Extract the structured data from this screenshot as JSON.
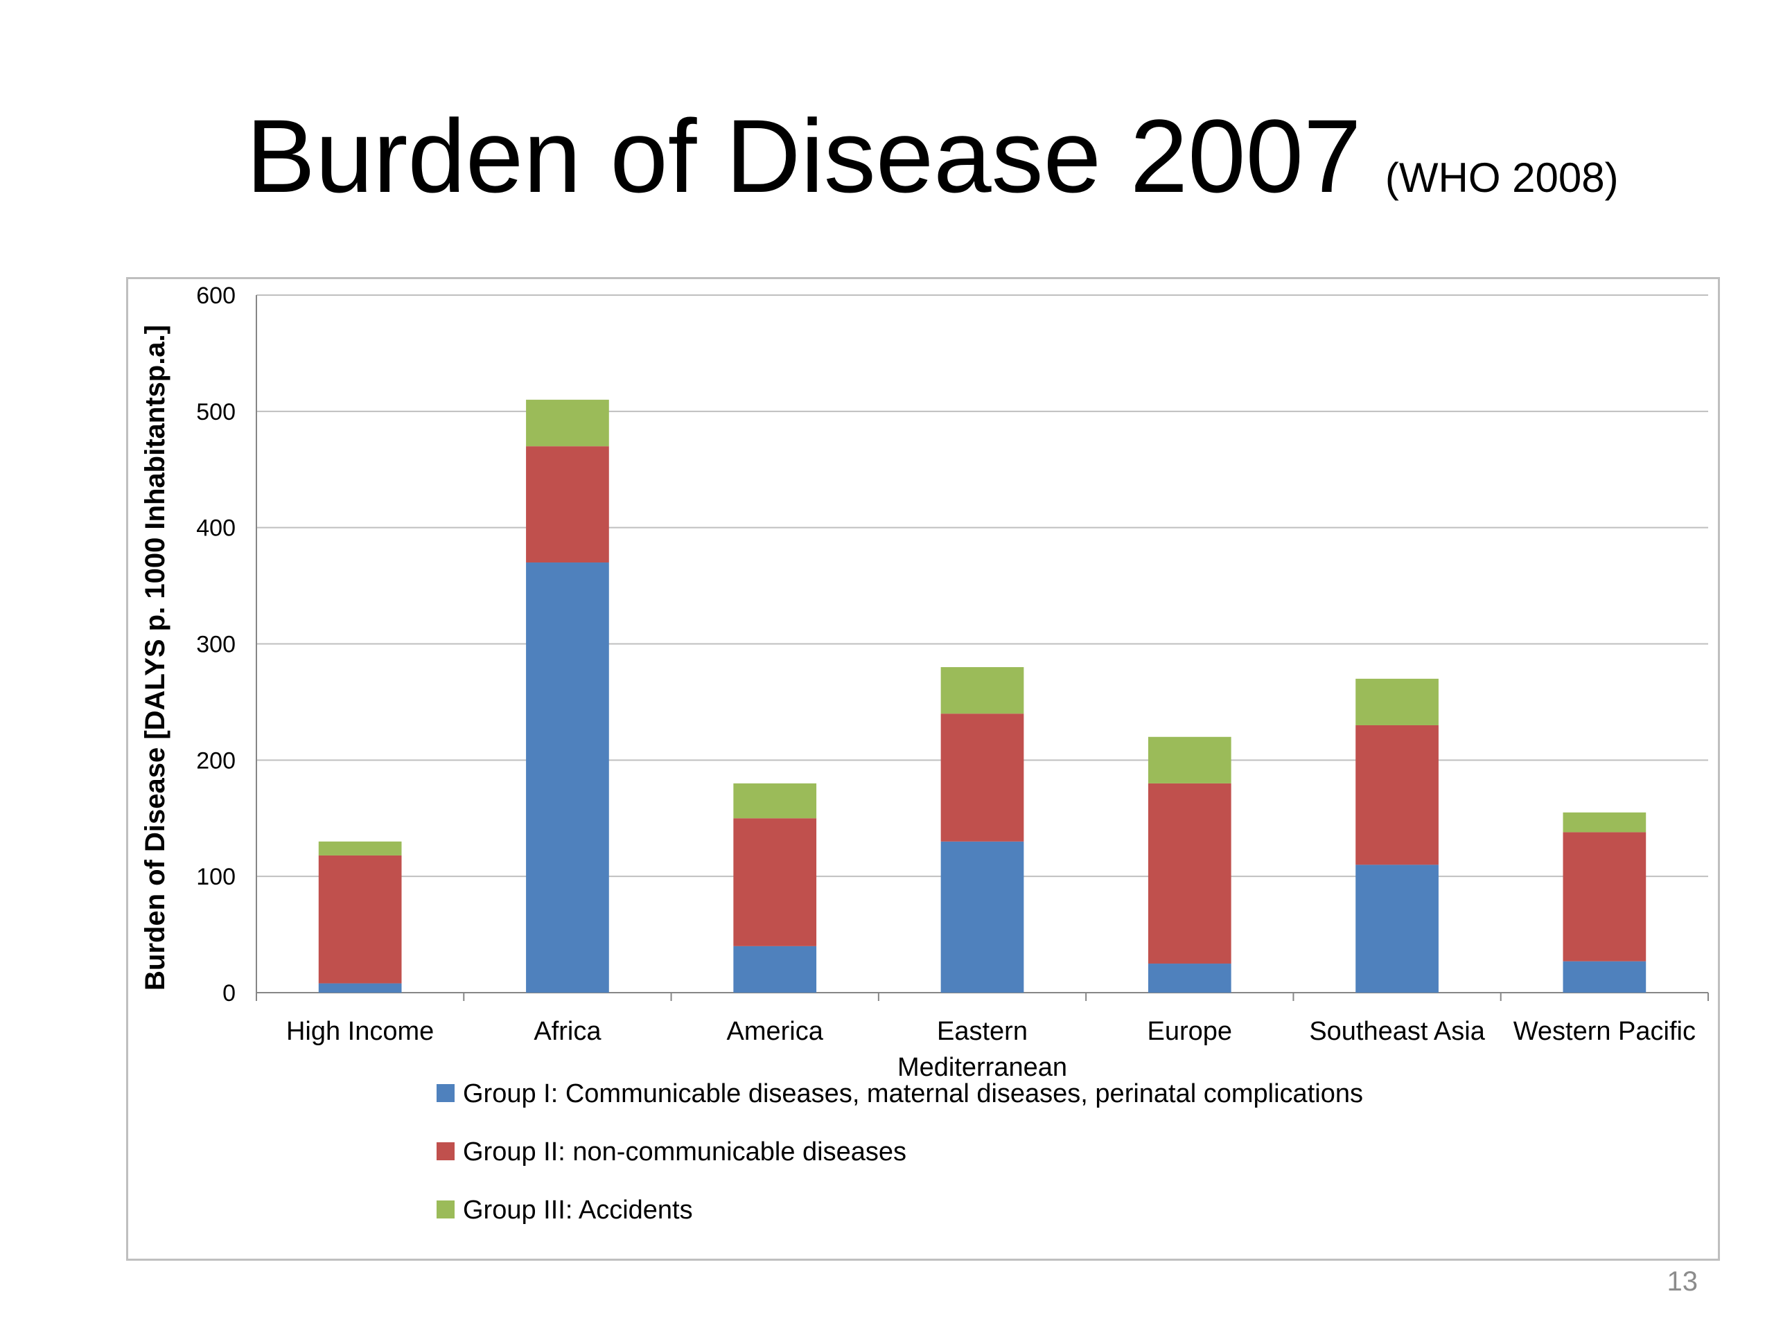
{
  "slide": {
    "title": "Burden of Disease 2007",
    "title_source": "(WHO 2008)",
    "page_number": "13"
  },
  "chart_data": {
    "type": "bar",
    "stacked": true,
    "title": "",
    "xlabel": "",
    "ylabel": "Burden of Disease [DALYS p. 1000 Inhabitantsp.a.]",
    "ylim": [
      0,
      600
    ],
    "yticks": [
      0,
      100,
      200,
      300,
      400,
      500,
      600
    ],
    "grid": true,
    "legend_position": "bottom",
    "categories": [
      [
        "High Income"
      ],
      [
        "Africa"
      ],
      [
        "America"
      ],
      [
        "Eastern",
        "Mediterranean"
      ],
      [
        "Europe"
      ],
      [
        "Southeast Asia"
      ],
      [
        "Western Pacific"
      ]
    ],
    "series": [
      {
        "name": "Group I: Communicable diseases, maternal diseases, perinatal complications",
        "color": "#4f81bd",
        "values": [
          8,
          370,
          40,
          130,
          25,
          110,
          27
        ]
      },
      {
        "name": "Group II: non-communicable diseases",
        "color": "#c0504d",
        "values": [
          110,
          100,
          110,
          110,
          155,
          120,
          111
        ]
      },
      {
        "name": "Group III: Accidents",
        "color": "#9bbb59",
        "values": [
          12,
          40,
          30,
          40,
          40,
          40,
          17
        ]
      }
    ]
  }
}
